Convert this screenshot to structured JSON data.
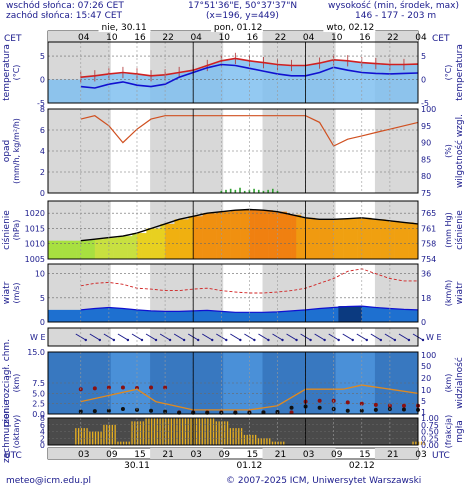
{
  "header": {
    "sunrise": "wschód słońca: 07:26 CET",
    "sunset": "zachód słońca: 15:47 CET",
    "coords": "17°51'36\"E, 50°37'37\"N",
    "grid": "(x=196, y=449)",
    "height_label": "wysokość (min, środek, max)",
    "height_values": "146 - 177 - 203 m"
  },
  "axes": {
    "tz_top": "CET",
    "tz_bottom": "UTC",
    "top_hours": [
      "04",
      "10",
      "16",
      "22",
      "04",
      "10",
      "16",
      "22",
      "04",
      "10",
      "16",
      "22",
      "04"
    ],
    "bottom_hours": [
      "03",
      "09",
      "15",
      "21",
      "03",
      "09",
      "15",
      "21",
      "03",
      "09",
      "15",
      "21",
      "03"
    ],
    "day_labels_top": [
      "nie, 30.11",
      "pon, 01.12",
      "wto, 02.12"
    ],
    "day_labels_bottom": [
      "30.11",
      "01.12",
      "02.12"
    ]
  },
  "panels": {
    "temp": {
      "left_label": "temperatura",
      "left_unit": "(°C)",
      "right_label": "temperatura",
      "right_unit": "(°C)",
      "left_ticks": [
        "5",
        "0",
        "-5"
      ],
      "right_ticks": [
        "5",
        "0",
        "-5"
      ]
    },
    "precip": {
      "left_label": "opad",
      "left_unit": "(mm/h, kg/m²/h)",
      "right_label": "wilgotność wzgl.",
      "right_unit": "(%)",
      "left_ticks": [
        "8",
        "6",
        "4",
        "2",
        "0"
      ],
      "right_ticks": [
        "100",
        "95",
        "90",
        "85",
        "80",
        "75"
      ]
    },
    "pressure": {
      "left_label": "ciśnienie",
      "left_unit": "(hPa)",
      "right_label": "ciśnienie",
      "right_unit": "(mm Hg)",
      "left_ticks": [
        "1020",
        "1015",
        "1010",
        "1005"
      ],
      "right_ticks": [
        "765",
        "761",
        "758",
        "754"
      ]
    },
    "wind": {
      "left_label": "wiatr",
      "left_unit": "(m/s)",
      "right_label": "wiatr",
      "right_unit": "(km/h)",
      "left_ticks": [
        "10",
        "5",
        "0"
      ],
      "right_ticks": [
        "36",
        "18",
        "0"
      ]
    },
    "dir": {
      "left_label": "W E",
      "right_label": "W E"
    },
    "vis": {
      "left_label": "pion. rozciągł. chm.",
      "left_unit": "(km)",
      "right_label": "widzialność",
      "right_unit": "(km)",
      "left_ticks": [
        "15.0",
        "7.5",
        "5.0",
        "2.5",
        "0.0"
      ],
      "right_ticks": [
        "100",
        "50",
        "20",
        "10",
        "5",
        "1"
      ]
    },
    "cloud": {
      "left_label": "zachmurzenie",
      "left_unit": "(oktany)",
      "right_label": "mgła",
      "right_unit": "(frakcja)",
      "left_ticks": [
        "8",
        "6",
        "4",
        "2",
        "0"
      ],
      "right_ticks": [
        "1.00",
        "0.75",
        "0.50",
        "0.25",
        "0.00"
      ]
    }
  },
  "footer": {
    "email": "meteo@icm.edu.pl",
    "copyright": "© 2007-2025 ICM, Uniwersytet Warszawski"
  },
  "colors": {
    "temp_max": "#d02020",
    "temp_line": "#1010d0",
    "temp_fill": "#80c0f0",
    "humidity": "#d05020",
    "pressure_line": "#000000",
    "wind_gust": "#d02020",
    "wind_mean": "#1010d0",
    "night": "#d8d8d8",
    "label_blue": "#1a1a8c"
  },
  "chart_data": [
    {
      "type": "line",
      "panel": "temp",
      "x_hours": [
        0,
        3,
        6,
        9,
        12,
        15,
        18,
        21,
        24,
        27,
        30,
        33,
        36,
        39,
        42,
        45,
        48,
        51,
        54,
        57,
        60,
        63,
        66,
        69,
        72
      ],
      "series": [
        {
          "values": [
            0.5,
            0.8,
            1.2,
            1.5,
            1.2,
            0.8,
            1.0,
            1.5,
            2.0,
            3.0,
            4.0,
            4.5,
            4.0,
            3.6,
            3.2,
            3.0,
            3.0,
            3.5,
            4.2,
            4.0,
            3.6,
            3.4,
            3.2,
            3.2,
            3.3
          ]
        },
        {
          "values": [
            -1.5,
            -1.8,
            -1.0,
            -0.5,
            -1.2,
            -1.5,
            -1.0,
            0.5,
            1.5,
            2.5,
            3.2,
            3.0,
            2.4,
            1.8,
            1.2,
            0.8,
            0.8,
            1.5,
            2.6,
            2.0,
            1.5,
            1.3,
            1.2,
            1.3,
            1.4
          ]
        }
      ],
      "ylim": [
        -5,
        8
      ]
    },
    {
      "type": "line",
      "panel": "humidity",
      "x_hours": [
        0,
        3,
        6,
        9,
        12,
        15,
        18,
        21,
        24,
        27,
        30,
        33,
        36,
        39,
        42,
        45,
        48,
        51,
        54,
        57,
        60,
        63,
        66,
        69,
        72
      ],
      "series": [
        {
          "values": [
            97,
            98,
            95,
            90,
            94,
            97,
            98,
            98,
            98,
            98,
            98,
            98,
            98,
            98,
            98,
            98,
            98,
            96,
            89,
            91,
            92,
            93,
            94,
            95,
            96
          ]
        }
      ],
      "ylim": [
        75,
        100
      ]
    },
    {
      "type": "bar",
      "panel": "precip",
      "x_hours": [
        30,
        31,
        32,
        33,
        34,
        35,
        36,
        37,
        38,
        39,
        40,
        41,
        42
      ],
      "values": [
        0.2,
        0.3,
        0.4,
        0.3,
        0.5,
        0.2,
        0.3,
        0.4,
        0.3,
        0.2,
        0.3,
        0.4,
        0.2
      ],
      "ylim": [
        0,
        8
      ]
    },
    {
      "type": "area",
      "panel": "pressure",
      "x_hours": [
        0,
        3,
        6,
        9,
        12,
        15,
        18,
        21,
        24,
        27,
        30,
        33,
        36,
        39,
        42,
        45,
        48,
        51,
        54,
        57,
        60,
        63,
        66,
        69,
        72
      ],
      "series": [
        {
          "values": [
            1011.0,
            1011.5,
            1012.0,
            1012.5,
            1013.5,
            1015.0,
            1016.5,
            1018.0,
            1019.0,
            1020.0,
            1020.5,
            1021.0,
            1021.2,
            1021.0,
            1020.5,
            1019.5,
            1018.5,
            1018.0,
            1018.0,
            1018.2,
            1018.5,
            1018.0,
            1017.5,
            1017.0,
            1016.5
          ]
        }
      ],
      "ylim": [
        1005,
        1024
      ]
    },
    {
      "type": "line",
      "panel": "wind",
      "x_hours": [
        0,
        3,
        6,
        9,
        12,
        15,
        18,
        21,
        24,
        27,
        30,
        33,
        36,
        39,
        42,
        45,
        48,
        51,
        54,
        57,
        60,
        63,
        66,
        69,
        72
      ],
      "series": [
        {
          "values": [
            7.5,
            8.0,
            8.2,
            7.8,
            7.0,
            6.8,
            6.5,
            6.5,
            6.8,
            7.0,
            6.5,
            6.2,
            6.0,
            6.0,
            6.2,
            6.5,
            7.0,
            8.0,
            9.0,
            10.5,
            11.0,
            10.0,
            9.0,
            8.5,
            8.5
          ]
        },
        {
          "values": [
            2.5,
            2.8,
            3.0,
            2.8,
            2.5,
            2.3,
            2.2,
            2.2,
            2.3,
            2.4,
            2.2,
            2.0,
            2.0,
            2.0,
            2.1,
            2.3,
            2.5,
            2.8,
            3.0,
            3.2,
            3.3,
            3.0,
            2.8,
            2.6,
            2.5
          ]
        }
      ],
      "ylim": [
        0,
        12
      ]
    },
    {
      "type": "scatter",
      "panel": "cloud_height",
      "x_hours": [
        0,
        3,
        6,
        9,
        12,
        15,
        18,
        21,
        24,
        27,
        30,
        33,
        36,
        39,
        42,
        45,
        48,
        51,
        54,
        57,
        60,
        63,
        66,
        69,
        72
      ],
      "series": [
        {
          "values": [
            6.0,
            6.2,
            6.4,
            6.4,
            6.3,
            6.4,
            6.4,
            0.4,
            0.4,
            0.4,
            0.4,
            0.4,
            0.4,
            0.4,
            0.4,
            0.4,
            3.0,
            3.2,
            3.2,
            2.8,
            2.5,
            2.2,
            2.0,
            2.0,
            2.0
          ]
        },
        {
          "values": [
            0.6,
            0.7,
            0.8,
            1.2,
            1.0,
            0.8,
            0.6,
            0.3,
            0.3,
            0.3,
            0.3,
            0.3,
            0.3,
            0.4,
            0.5,
            1.5,
            1.8,
            1.5,
            1.2,
            0.8,
            0.8,
            1.0,
            1.2,
            1.1,
            1.0
          ]
        }
      ],
      "ylim": [
        0,
        15
      ]
    },
    {
      "type": "bar",
      "panel": "cloud",
      "x_hours": [
        0,
        3,
        6,
        9,
        12,
        15,
        18,
        21,
        24,
        27,
        30,
        33,
        36,
        39,
        42,
        45,
        48,
        51,
        54,
        57,
        60,
        63,
        66,
        69,
        72
      ],
      "values": [
        5,
        4,
        6,
        1,
        7,
        8,
        8,
        8,
        8,
        8,
        7,
        5,
        3,
        2,
        1,
        0,
        0,
        0,
        0,
        0,
        0,
        0,
        0,
        0,
        1
      ],
      "ylim": [
        0,
        8
      ]
    }
  ]
}
